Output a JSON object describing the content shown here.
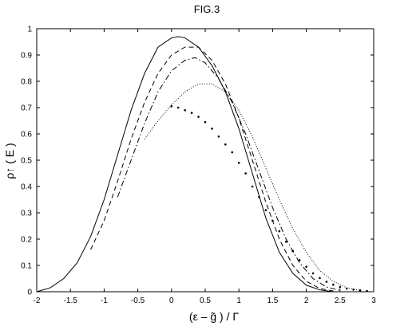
{
  "chart_data": {
    "type": "line",
    "title": "FIG.3",
    "xlabel": "(ε – g̃ ) / Γ",
    "ylabel": "ρ↑ ( E )",
    "xlim": [
      -2,
      3
    ],
    "ylim": [
      0,
      1
    ],
    "x_ticks": [
      "-2",
      "-1.5",
      "-1",
      "-0.5",
      "0",
      "0.5",
      "1",
      "1.5",
      "2",
      "2.5",
      "3"
    ],
    "y_ticks": [
      "0",
      "0.1",
      "0.2",
      "0.3",
      "0.4",
      "0.5",
      "0.6",
      "0.7",
      "0.8",
      "0.9",
      "1"
    ],
    "grid": false,
    "series": [
      {
        "style": "solid",
        "x": [
          -2.0,
          -1.8,
          -1.6,
          -1.4,
          -1.2,
          -1.0,
          -0.8,
          -0.6,
          -0.4,
          -0.2,
          0.0,
          0.1,
          0.2,
          0.4,
          0.6,
          0.8,
          1.0,
          1.2,
          1.4,
          1.6,
          1.8,
          2.0,
          2.2,
          2.4
        ],
        "y": [
          0.0,
          0.015,
          0.05,
          0.11,
          0.21,
          0.35,
          0.52,
          0.69,
          0.83,
          0.93,
          0.965,
          0.97,
          0.965,
          0.93,
          0.86,
          0.76,
          0.62,
          0.45,
          0.28,
          0.15,
          0.07,
          0.025,
          0.007,
          0.0
        ]
      },
      {
        "style": "dashed",
        "x": [
          -1.2,
          -1.0,
          -0.8,
          -0.6,
          -0.4,
          -0.2,
          0.0,
          0.2,
          0.4,
          0.6,
          0.8,
          1.0,
          1.2,
          1.4,
          1.6,
          1.8,
          2.0,
          2.2,
          2.4
        ],
        "y": [
          0.16,
          0.27,
          0.42,
          0.58,
          0.72,
          0.83,
          0.9,
          0.93,
          0.93,
          0.88,
          0.79,
          0.66,
          0.5,
          0.34,
          0.2,
          0.1,
          0.04,
          0.012,
          0.003
        ]
      },
      {
        "style": "dashdot",
        "x": [
          -0.8,
          -0.6,
          -0.4,
          -0.2,
          0.0,
          0.2,
          0.35,
          0.5,
          0.7,
          0.9,
          1.1,
          1.3,
          1.5,
          1.7,
          1.9,
          2.1,
          2.3,
          2.5
        ],
        "y": [
          0.36,
          0.5,
          0.64,
          0.76,
          0.84,
          0.88,
          0.89,
          0.87,
          0.81,
          0.72,
          0.6,
          0.46,
          0.32,
          0.2,
          0.11,
          0.05,
          0.018,
          0.005
        ]
      },
      {
        "style": "dotted",
        "x": [
          -0.4,
          -0.2,
          0.0,
          0.2,
          0.4,
          0.6,
          0.8,
          1.0,
          1.2,
          1.4,
          1.6,
          1.8,
          2.0,
          2.2,
          2.4,
          2.6,
          2.8
        ],
        "y": [
          0.58,
          0.65,
          0.71,
          0.76,
          0.79,
          0.79,
          0.76,
          0.69,
          0.59,
          0.47,
          0.35,
          0.24,
          0.15,
          0.08,
          0.04,
          0.015,
          0.005
        ]
      },
      {
        "style": "sparse-dots",
        "x": [
          0.0,
          0.1,
          0.2,
          0.3,
          0.4,
          0.5,
          0.6,
          0.7,
          0.8,
          0.9,
          1.0,
          1.1,
          1.2,
          1.3,
          1.4,
          1.5,
          1.6,
          1.7,
          1.8,
          1.9,
          2.0,
          2.1,
          2.2,
          2.3,
          2.4,
          2.5,
          2.6,
          2.7,
          2.8,
          2.9
        ],
        "y": [
          0.705,
          0.7,
          0.69,
          0.68,
          0.665,
          0.645,
          0.62,
          0.59,
          0.56,
          0.53,
          0.49,
          0.45,
          0.4,
          0.36,
          0.31,
          0.27,
          0.23,
          0.19,
          0.155,
          0.12,
          0.095,
          0.07,
          0.052,
          0.038,
          0.027,
          0.018,
          0.012,
          0.008,
          0.005,
          0.003
        ]
      }
    ]
  }
}
